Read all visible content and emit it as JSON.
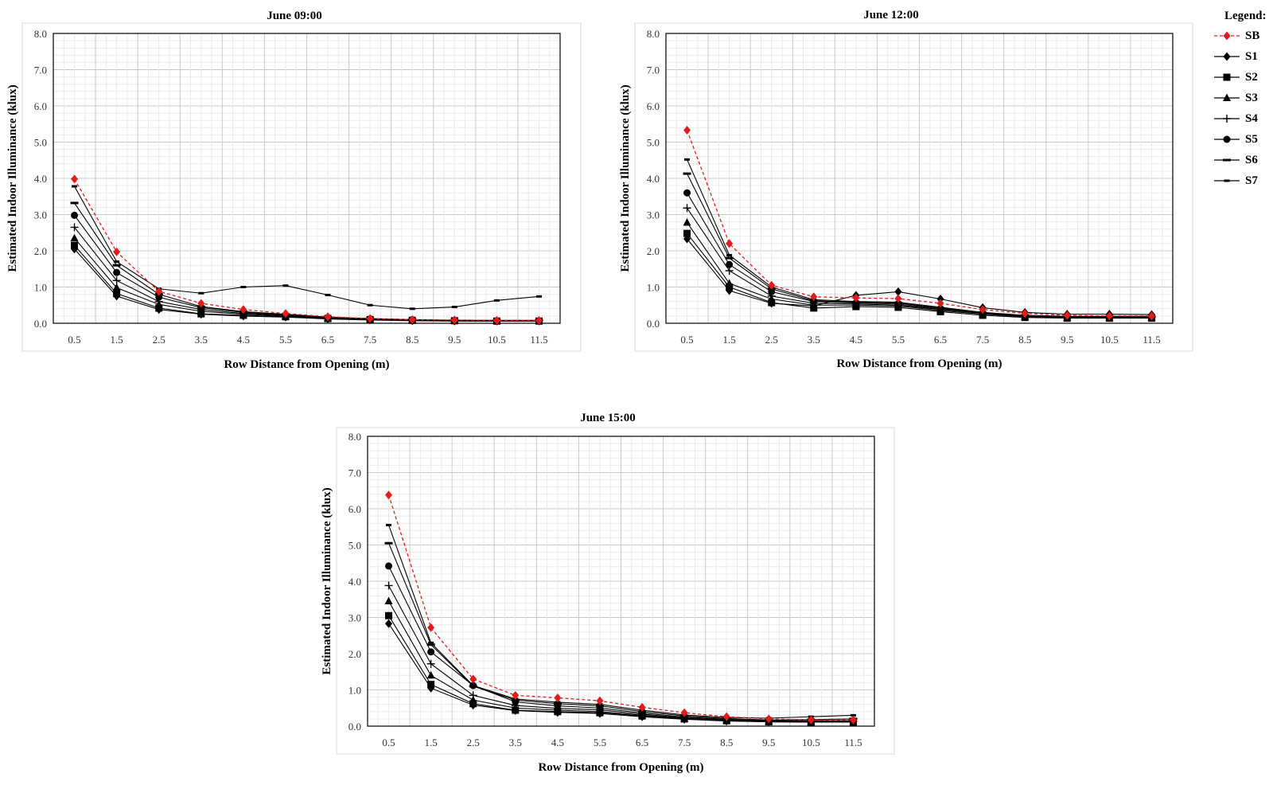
{
  "legend": {
    "title": "Legend:",
    "items": [
      {
        "key": "SB",
        "label": "SB",
        "color": "#e31b1b",
        "marker": "diamond",
        "dashed": true
      },
      {
        "key": "S1",
        "label": "S1",
        "color": "#000000",
        "marker": "diamond",
        "dashed": false
      },
      {
        "key": "S2",
        "label": "S2",
        "color": "#000000",
        "marker": "square",
        "dashed": false
      },
      {
        "key": "S3",
        "label": "S3",
        "color": "#000000",
        "marker": "triangle",
        "dashed": false
      },
      {
        "key": "S4",
        "label": "S4",
        "color": "#000000",
        "marker": "plus",
        "dashed": false
      },
      {
        "key": "S5",
        "label": "S5",
        "color": "#000000",
        "marker": "circle",
        "dashed": false
      },
      {
        "key": "S6",
        "label": "S6",
        "color": "#000000",
        "marker": "dash",
        "dashed": false
      },
      {
        "key": "S7",
        "label": "S7",
        "color": "#000000",
        "marker": "dash-small",
        "dashed": false
      }
    ]
  },
  "chart_data": [
    {
      "type": "line",
      "title": "June 09:00",
      "xlabel": "Row Distance from Opening (m)",
      "ylabel": "Estimated Indoor Illuminance (klux)",
      "ylim": [
        0,
        8
      ],
      "yticks": [
        "0.0",
        "1.0",
        "2.0",
        "3.0",
        "4.0",
        "5.0",
        "6.0",
        "7.0",
        "8.0"
      ],
      "categories": [
        "0.5",
        "1.5",
        "2.5",
        "3.5",
        "4.5",
        "5.5",
        "6.5",
        "7.5",
        "8.5",
        "9.5",
        "10.5",
        "11.5"
      ],
      "grid": true,
      "series": [
        {
          "name": "SB",
          "values": [
            3.98,
            1.97,
            0.88,
            0.55,
            0.38,
            0.27,
            0.18,
            0.13,
            0.1,
            0.09,
            0.08,
            0.08
          ]
        },
        {
          "name": "S1",
          "values": [
            2.05,
            0.75,
            0.38,
            0.25,
            0.2,
            0.17,
            0.12,
            0.09,
            0.07,
            0.06,
            0.06,
            0.06
          ]
        },
        {
          "name": "S2",
          "values": [
            2.15,
            0.82,
            0.42,
            0.26,
            0.22,
            0.18,
            0.13,
            0.1,
            0.08,
            0.07,
            0.06,
            0.06
          ]
        },
        {
          "name": "S3",
          "values": [
            2.35,
            0.98,
            0.52,
            0.33,
            0.25,
            0.2,
            0.14,
            0.11,
            0.09,
            0.07,
            0.07,
            0.07
          ]
        },
        {
          "name": "S4",
          "values": [
            2.65,
            1.18,
            0.6,
            0.38,
            0.27,
            0.22,
            0.15,
            0.12,
            0.09,
            0.08,
            0.07,
            0.07
          ]
        },
        {
          "name": "S5",
          "values": [
            2.98,
            1.4,
            0.72,
            0.43,
            0.3,
            0.23,
            0.16,
            0.12,
            0.1,
            0.08,
            0.07,
            0.07
          ]
        },
        {
          "name": "S6",
          "values": [
            3.32,
            1.6,
            0.8,
            0.46,
            0.32,
            0.25,
            0.17,
            0.13,
            0.1,
            0.08,
            0.08,
            0.08
          ]
        },
        {
          "name": "S7",
          "values": [
            3.78,
            1.7,
            0.95,
            0.83,
            1.0,
            1.04,
            0.78,
            0.5,
            0.4,
            0.45,
            0.63,
            0.74
          ]
        }
      ]
    },
    {
      "type": "line",
      "title": "June 12:00",
      "xlabel": "Row Distance from Opening (m)",
      "ylabel": "Estimated Indoor Illuminance (klux)",
      "ylim": [
        0,
        8
      ],
      "yticks": [
        "0.0",
        "1.0",
        "2.0",
        "3.0",
        "4.0",
        "5.0",
        "6.0",
        "7.0",
        "8.0"
      ],
      "categories": [
        "0.5",
        "1.5",
        "2.5",
        "3.5",
        "4.5",
        "5.5",
        "6.5",
        "7.5",
        "8.5",
        "9.5",
        "10.5",
        "11.5"
      ],
      "grid": true,
      "series": [
        {
          "name": "SB",
          "values": [
            5.33,
            2.2,
            1.05,
            0.73,
            0.7,
            0.68,
            0.55,
            0.38,
            0.27,
            0.22,
            0.2,
            0.2
          ]
        },
        {
          "name": "S1",
          "values": [
            2.33,
            0.9,
            0.55,
            0.48,
            0.77,
            0.87,
            0.67,
            0.43,
            0.3,
            0.25,
            0.25,
            0.24
          ]
        },
        {
          "name": "S2",
          "values": [
            2.48,
            1.0,
            0.57,
            0.42,
            0.46,
            0.44,
            0.32,
            0.22,
            0.16,
            0.14,
            0.14,
            0.14
          ]
        },
        {
          "name": "S3",
          "values": [
            2.78,
            1.1,
            0.67,
            0.5,
            0.5,
            0.48,
            0.35,
            0.25,
            0.18,
            0.15,
            0.15,
            0.15
          ]
        },
        {
          "name": "S4",
          "values": [
            3.18,
            1.45,
            0.75,
            0.55,
            0.53,
            0.5,
            0.38,
            0.27,
            0.19,
            0.16,
            0.16,
            0.16
          ]
        },
        {
          "name": "S5",
          "values": [
            3.6,
            1.62,
            0.87,
            0.6,
            0.56,
            0.53,
            0.4,
            0.28,
            0.2,
            0.17,
            0.17,
            0.17
          ]
        },
        {
          "name": "S6",
          "values": [
            4.13,
            1.8,
            0.95,
            0.62,
            0.58,
            0.56,
            0.42,
            0.29,
            0.21,
            0.18,
            0.18,
            0.18
          ]
        },
        {
          "name": "S7",
          "values": [
            4.52,
            1.88,
            1.0,
            0.65,
            0.6,
            0.58,
            0.44,
            0.3,
            0.22,
            0.19,
            0.19,
            0.19
          ]
        }
      ]
    },
    {
      "type": "line",
      "title": "June 15:00",
      "xlabel": "Row Distance from Opening (m)",
      "ylabel": "Estimated Indoor Illuminance (klux)",
      "ylim": [
        0,
        8
      ],
      "yticks": [
        "0.0",
        "1.0",
        "2.0",
        "3.0",
        "4.0",
        "5.0",
        "6.0",
        "7.0",
        "8.0"
      ],
      "categories": [
        "0.5",
        "1.5",
        "2.5",
        "3.5",
        "4.5",
        "5.5",
        "6.5",
        "7.5",
        "8.5",
        "9.5",
        "10.5",
        "11.5"
      ],
      "grid": true,
      "series": [
        {
          "name": "SB",
          "values": [
            6.38,
            2.72,
            1.3,
            0.85,
            0.78,
            0.7,
            0.52,
            0.37,
            0.26,
            0.2,
            0.17,
            0.17
          ]
        },
        {
          "name": "S1",
          "values": [
            2.83,
            1.05,
            0.58,
            0.43,
            0.38,
            0.35,
            0.26,
            0.19,
            0.14,
            0.12,
            0.11,
            0.11
          ]
        },
        {
          "name": "S2",
          "values": [
            3.05,
            1.15,
            0.62,
            0.44,
            0.4,
            0.37,
            0.28,
            0.2,
            0.15,
            0.12,
            0.11,
            0.11
          ]
        },
        {
          "name": "S3",
          "values": [
            3.45,
            1.4,
            0.72,
            0.5,
            0.44,
            0.4,
            0.3,
            0.21,
            0.16,
            0.13,
            0.12,
            0.12
          ]
        },
        {
          "name": "S4",
          "values": [
            3.88,
            1.72,
            0.85,
            0.57,
            0.49,
            0.45,
            0.33,
            0.23,
            0.17,
            0.14,
            0.13,
            0.13
          ]
        },
        {
          "name": "S5",
          "values": [
            4.42,
            2.05,
            1.12,
            0.67,
            0.56,
            0.5,
            0.36,
            0.25,
            0.19,
            0.15,
            0.15,
            0.15
          ]
        },
        {
          "name": "S6",
          "values": [
            5.05,
            2.25,
            1.1,
            0.72,
            0.62,
            0.56,
            0.4,
            0.28,
            0.21,
            0.17,
            0.18,
            0.2
          ]
        },
        {
          "name": "S7",
          "values": [
            5.55,
            2.3,
            1.12,
            0.75,
            0.66,
            0.6,
            0.44,
            0.31,
            0.24,
            0.22,
            0.26,
            0.3
          ]
        }
      ]
    }
  ]
}
